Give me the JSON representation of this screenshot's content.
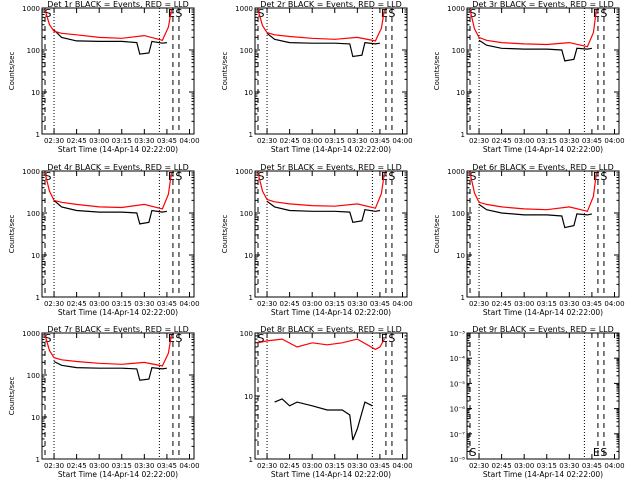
{
  "colors": {
    "events": "#000000",
    "lld": "#ff0000",
    "axis": "#000000"
  },
  "chart_data": [
    {
      "type": "line",
      "title": "Det 1r BLACK = Events, RED = LLD",
      "xlabel": "Start Time (14-Apr-14 02:22:00)",
      "ylabel": "Counts/sec",
      "ylog": true,
      "ylim": [
        1,
        1000
      ],
      "yticks": [
        "1",
        "10",
        "100",
        "1000"
      ],
      "xticks": [
        "02:30",
        "02:45",
        "03:00",
        "03:15",
        "03:30",
        "03:45",
        "04:00"
      ],
      "markers": [
        {
          "label": "S",
          "x": "02:23"
        },
        {
          "label": "E",
          "x": "03:45"
        },
        {
          "label": "S",
          "x": "03:50"
        }
      ],
      "series": [
        {
          "color": "events",
          "x": [
            "02:30",
            "02:35",
            "02:45",
            "03:00",
            "03:15",
            "03:25",
            "03:27",
            "03:33",
            "03:35",
            "03:42",
            "03:45"
          ],
          "y": [
            300,
            200,
            165,
            160,
            160,
            150,
            80,
            85,
            160,
            145,
            150
          ]
        },
        {
          "color": "lld",
          "x": [
            "02:24",
            "02:27",
            "02:30",
            "02:35",
            "02:45",
            "03:00",
            "03:15",
            "03:30",
            "03:42",
            "03:46",
            "03:48"
          ],
          "y": [
            900,
            400,
            280,
            250,
            230,
            200,
            190,
            220,
            170,
            350,
            900
          ]
        }
      ]
    },
    {
      "type": "line",
      "title": "Det 2r BLACK = Events, RED = LLD",
      "xlabel": "Start Time (14-Apr-14 02:22:00)",
      "ylabel": "Counts/sec",
      "ylog": true,
      "ylim": [
        1,
        1000
      ],
      "yticks": [
        "1",
        "10",
        "100",
        "1000"
      ],
      "xticks": [
        "02:30",
        "02:45",
        "03:00",
        "03:15",
        "03:30",
        "03:45",
        "04:00"
      ],
      "markers": [
        {
          "label": "S",
          "x": "02:23"
        },
        {
          "label": "E",
          "x": "03:45"
        },
        {
          "label": "S",
          "x": "03:50"
        }
      ],
      "series": [
        {
          "color": "events",
          "x": [
            "02:30",
            "02:35",
            "02:45",
            "03:00",
            "03:15",
            "03:25",
            "03:27",
            "03:33",
            "03:35",
            "03:42",
            "03:45"
          ],
          "y": [
            250,
            180,
            150,
            145,
            145,
            140,
            70,
            75,
            150,
            140,
            145
          ]
        },
        {
          "color": "lld",
          "x": [
            "02:24",
            "02:27",
            "02:30",
            "02:35",
            "02:45",
            "03:00",
            "03:15",
            "03:30",
            "03:42",
            "03:46",
            "03:48"
          ],
          "y": [
            900,
            380,
            260,
            230,
            210,
            190,
            180,
            200,
            165,
            330,
            900
          ]
        }
      ]
    },
    {
      "type": "line",
      "title": "Det 3r BLACK = Events, RED = LLD",
      "xlabel": "Start Time (14-Apr-14 02:22:00)",
      "ylabel": "Counts/sec",
      "ylog": true,
      "ylim": [
        1,
        1000
      ],
      "yticks": [
        "1",
        "10",
        "100",
        "1000"
      ],
      "xticks": [
        "02:30",
        "02:45",
        "03:00",
        "03:15",
        "03:30",
        "03:45",
        "04:00"
      ],
      "markers": [
        {
          "label": "S",
          "x": "02:23"
        },
        {
          "label": "E",
          "x": "03:45"
        },
        {
          "label": "S",
          "x": "03:50"
        }
      ],
      "series": [
        {
          "color": "events",
          "x": [
            "02:30",
            "02:35",
            "02:45",
            "03:00",
            "03:15",
            "03:25",
            "03:27",
            "03:33",
            "03:35",
            "03:42",
            "03:45"
          ],
          "y": [
            170,
            130,
            110,
            105,
            105,
            100,
            55,
            60,
            110,
            105,
            110
          ]
        },
        {
          "color": "lld",
          "x": [
            "02:24",
            "02:27",
            "02:30",
            "02:35",
            "02:45",
            "03:00",
            "03:15",
            "03:30",
            "03:42",
            "03:46",
            "03:48"
          ],
          "y": [
            900,
            320,
            200,
            170,
            150,
            140,
            135,
            150,
            120,
            260,
            900
          ]
        }
      ]
    },
    {
      "type": "line",
      "title": "Det 4r BLACK = Events, RED = LLD",
      "xlabel": "Start Time (14-Apr-14 02:22:00)",
      "ylabel": "Counts/sec",
      "ylog": true,
      "ylim": [
        1,
        1000
      ],
      "yticks": [
        "1",
        "10",
        "100",
        "1000"
      ],
      "xticks": [
        "02:30",
        "02:45",
        "03:00",
        "03:15",
        "03:30",
        "03:45",
        "04:00"
      ],
      "markers": [
        {
          "label": "S",
          "x": "02:23"
        },
        {
          "label": "E",
          "x": "03:45"
        },
        {
          "label": "S",
          "x": "03:50"
        }
      ],
      "series": [
        {
          "color": "events",
          "x": [
            "02:30",
            "02:35",
            "02:45",
            "03:00",
            "03:15",
            "03:25",
            "03:27",
            "03:33",
            "03:35",
            "03:42",
            "03:45"
          ],
          "y": [
            200,
            140,
            115,
            105,
            105,
            100,
            55,
            60,
            115,
            105,
            110
          ]
        },
        {
          "color": "lld",
          "x": [
            "02:24",
            "02:27",
            "02:30",
            "02:35",
            "02:45",
            "03:00",
            "03:15",
            "03:30",
            "03:42",
            "03:46",
            "03:48"
          ],
          "y": [
            900,
            330,
            200,
            180,
            160,
            140,
            135,
            160,
            125,
            280,
            900
          ]
        }
      ]
    },
    {
      "type": "line",
      "title": "Det 5r BLACK = Events, RED = LLD",
      "xlabel": "Start Time (14-Apr-14 02:22:00)",
      "ylabel": "Counts/sec",
      "ylog": true,
      "ylim": [
        1,
        1000
      ],
      "yticks": [
        "1",
        "10",
        "100",
        "1000"
      ],
      "xticks": [
        "02:30",
        "02:45",
        "03:00",
        "03:15",
        "03:30",
        "03:45",
        "04:00"
      ],
      "markers": [
        {
          "label": "S",
          "x": "02:23"
        },
        {
          "label": "E",
          "x": "03:45"
        },
        {
          "label": "S",
          "x": "03:50"
        }
      ],
      "series": [
        {
          "color": "events",
          "x": [
            "02:30",
            "02:35",
            "02:45",
            "03:00",
            "03:15",
            "03:25",
            "03:27",
            "03:33",
            "03:35",
            "03:42",
            "03:45"
          ],
          "y": [
            190,
            140,
            115,
            110,
            110,
            105,
            60,
            65,
            120,
            110,
            115
          ]
        },
        {
          "color": "lld",
          "x": [
            "02:24",
            "02:27",
            "02:30",
            "02:35",
            "02:45",
            "03:00",
            "03:15",
            "03:30",
            "03:42",
            "03:46",
            "03:48"
          ],
          "y": [
            900,
            330,
            210,
            185,
            165,
            150,
            145,
            165,
            130,
            290,
            900
          ]
        }
      ]
    },
    {
      "type": "line",
      "title": "Det 6r BLACK = Events, RED = LLD",
      "xlabel": "Start Time (14-Apr-14 02:22:00)",
      "ylabel": "Counts/sec",
      "ylog": true,
      "ylim": [
        1,
        1000
      ],
      "yticks": [
        "1",
        "10",
        "100",
        "1000"
      ],
      "xticks": [
        "02:30",
        "02:45",
        "03:00",
        "03:15",
        "03:30",
        "03:45",
        "04:00"
      ],
      "markers": [
        {
          "label": "S",
          "x": "02:23"
        },
        {
          "label": "E",
          "x": "03:45"
        },
        {
          "label": "S",
          "x": "03:50"
        }
      ],
      "series": [
        {
          "color": "events",
          "x": [
            "02:30",
            "02:35",
            "02:45",
            "03:00",
            "03:15",
            "03:25",
            "03:27",
            "03:33",
            "03:35",
            "03:42",
            "03:45"
          ],
          "y": [
            160,
            120,
            100,
            90,
            90,
            85,
            45,
            50,
            95,
            90,
            95
          ]
        },
        {
          "color": "lld",
          "x": [
            "02:24",
            "02:27",
            "02:30",
            "02:35",
            "02:45",
            "03:00",
            "03:15",
            "03:30",
            "03:42",
            "03:46",
            "03:48"
          ],
          "y": [
            900,
            300,
            180,
            160,
            140,
            125,
            120,
            140,
            110,
            250,
            900
          ]
        }
      ]
    },
    {
      "type": "line",
      "title": "Det 7r BLACK = Events, RED = LLD",
      "xlabel": "Start Time (14-Apr-14 02:22:00)",
      "ylabel": "Counts/sec",
      "ylog": true,
      "ylim": [
        1,
        1000
      ],
      "yticks": [
        "1",
        "10",
        "100",
        "1000"
      ],
      "xticks": [
        "02:30",
        "02:45",
        "03:00",
        "03:15",
        "03:30",
        "03:45",
        "04:00"
      ],
      "markers": [
        {
          "label": "S",
          "x": "02:23"
        },
        {
          "label": "E",
          "x": "03:45"
        },
        {
          "label": "S",
          "x": "03:50"
        }
      ],
      "series": [
        {
          "color": "events",
          "x": [
            "02:30",
            "02:35",
            "02:45",
            "03:00",
            "03:15",
            "03:25",
            "03:27",
            "03:33",
            "03:35",
            "03:42",
            "03:45"
          ],
          "y": [
            210,
            170,
            150,
            145,
            145,
            140,
            75,
            80,
            150,
            140,
            145
          ]
        },
        {
          "color": "lld",
          "x": [
            "02:24",
            "02:27",
            "02:30",
            "02:35",
            "02:45",
            "03:00",
            "03:15",
            "03:30",
            "03:42",
            "03:46",
            "03:48"
          ],
          "y": [
            900,
            380,
            260,
            230,
            210,
            190,
            180,
            200,
            165,
            330,
            900
          ]
        }
      ]
    },
    {
      "type": "line",
      "title": "Det 8r BLACK = Events, RED = LLD",
      "xlabel": "Start Time (14-Apr-14 02:22:00)",
      "ylabel": "",
      "ylog": true,
      "ylim": [
        1,
        100
      ],
      "yticks": [
        "1",
        "10",
        "100"
      ],
      "xticks": [
        "02:30",
        "02:45",
        "03:00",
        "03:15",
        "03:30",
        "03:45",
        "04:00"
      ],
      "markers": [
        {
          "label": "S",
          "x": "02:23"
        },
        {
          "label": "E",
          "x": "03:45"
        },
        {
          "label": "S",
          "x": "03:50"
        }
      ],
      "series": [
        {
          "color": "events",
          "x": [
            "02:35",
            "02:40",
            "02:45",
            "02:50",
            "03:00",
            "03:10",
            "03:20",
            "03:25",
            "03:27",
            "03:30",
            "03:35",
            "03:40"
          ],
          "y": [
            8,
            9,
            7,
            8,
            7,
            6,
            6,
            5,
            2,
            3,
            8,
            7
          ]
        },
        {
          "color": "lld",
          "x": [
            "02:24",
            "02:30",
            "02:40",
            "02:50",
            "03:00",
            "03:10",
            "03:20",
            "03:30",
            "03:42",
            "03:45",
            "03:48"
          ],
          "y": [
            70,
            75,
            80,
            60,
            70,
            65,
            70,
            80,
            55,
            60,
            80
          ]
        }
      ]
    },
    {
      "type": "line",
      "title": "Det 9r BLACK = Events, RED = LLD",
      "xlabel": "Start Time (14-Apr-14 02:22:00)",
      "ylabel": "",
      "ylog": true,
      "ylim": [
        1e-08,
        0.001
      ],
      "yticks": [
        "10⁻⁸",
        "10⁻⁷",
        "10⁻⁶",
        "10⁻⁵",
        "10⁻⁴",
        "10⁻³"
      ],
      "xticks": [
        "02:30",
        "02:45",
        "03:00",
        "03:15",
        "03:30",
        "03:45",
        "04:00"
      ],
      "markers": [
        {
          "label": "S",
          "x": "02:23"
        },
        {
          "label": "E",
          "x": "03:45"
        },
        {
          "label": "S",
          "x": "03:50"
        }
      ],
      "series": []
    }
  ]
}
